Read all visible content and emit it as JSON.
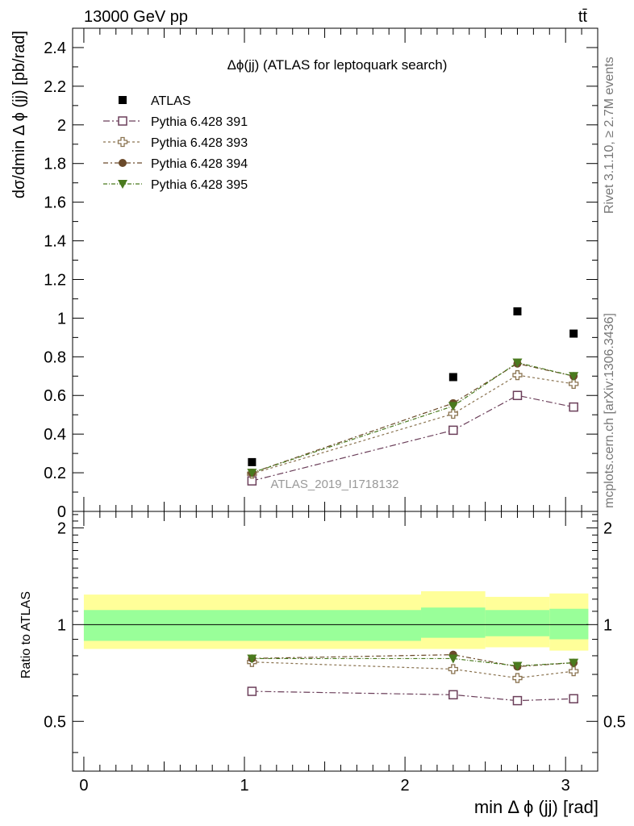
{
  "header": {
    "energy_label": "13000 GeV pp",
    "process_label": "tt̄"
  },
  "side_labels": {
    "rivet": "Rivet 3.1.10, ≥ 2.7M events",
    "mcplots": "mcplots.cern.ch [arXiv:1306.3436]"
  },
  "chart_data": [
    {
      "type": "scatter",
      "title": "Δϕ(jj) (ATLAS for leptoquark search)",
      "ylabel": "dσ/dmin Δ ϕ (jj) [pb/rad]",
      "xlabel": "min Δ ϕ (jj) [rad]",
      "watermark": "ATLAS_2019_I1718132",
      "xlim": [
        -0.07,
        3.2
      ],
      "ylim": [
        0,
        2.5
      ],
      "x_ticks": [
        "0",
        "1",
        "2",
        "3"
      ],
      "y_ticks": [
        "0",
        "0.2",
        "0.4",
        "0.6",
        "0.8",
        "1",
        "1.2",
        "1.4",
        "1.6",
        "1.8",
        "2",
        "2.2",
        "2.4"
      ],
      "x": [
        1.047,
        2.3,
        2.7,
        3.05
      ],
      "series": [
        {
          "name": "ATLAS",
          "marker": "square-filled",
          "color": "#000000",
          "values": [
            0.255,
            0.695,
            1.035,
            0.92
          ]
        },
        {
          "name": "Pythia 6.428 391",
          "marker": "square-open",
          "color": "#6b3f5a",
          "values": [
            0.158,
            0.42,
            0.6,
            0.54
          ]
        },
        {
          "name": "Pythia 6.428 393",
          "marker": "cross-open",
          "color": "#8a7350",
          "values": [
            0.195,
            0.505,
            0.705,
            0.66
          ]
        },
        {
          "name": "Pythia 6.428 394",
          "marker": "circle-filled",
          "color": "#6b4a2a",
          "values": [
            0.2,
            0.56,
            0.765,
            0.7
          ]
        },
        {
          "name": "Pythia 6.428 395",
          "marker": "triangle-down-filled",
          "color": "#4a7a1e",
          "values": [
            0.2,
            0.545,
            0.77,
            0.7
          ]
        }
      ]
    },
    {
      "type": "scatter",
      "ylabel": "Ratio to ATLAS",
      "xlabel": "min Δ ϕ (jj) [rad]",
      "xlim": [
        -0.07,
        3.2
      ],
      "ylim": [
        0.35,
        2.25
      ],
      "x_ticks": [
        "0",
        "1",
        "2",
        "3"
      ],
      "y_ticks": [
        "0.5",
        "1",
        "2"
      ],
      "bands": {
        "bins": [
          [
            0.0,
            2.1
          ],
          [
            2.1,
            2.5
          ],
          [
            2.5,
            2.9
          ],
          [
            2.9,
            3.1416
          ]
        ],
        "inner": [
          [
            0.89,
            1.11
          ],
          [
            0.91,
            1.13
          ],
          [
            0.92,
            1.11
          ],
          [
            0.9,
            1.12
          ]
        ],
        "outer": [
          [
            0.84,
            1.24
          ],
          [
            0.84,
            1.27
          ],
          [
            0.85,
            1.22
          ],
          [
            0.83,
            1.25
          ]
        ],
        "inner_color": "#99ff99",
        "outer_color": "#ffff99"
      },
      "x": [
        1.047,
        2.3,
        2.7,
        3.05
      ],
      "series": [
        {
          "name": "Pythia 6.428 391",
          "marker": "square-open",
          "color": "#6b3f5a",
          "values": [
            0.62,
            0.605,
            0.58,
            0.588
          ]
        },
        {
          "name": "Pythia 6.428 393",
          "marker": "cross-open",
          "color": "#8a7350",
          "values": [
            0.765,
            0.727,
            0.682,
            0.716
          ]
        },
        {
          "name": "Pythia 6.428 394",
          "marker": "circle-filled",
          "color": "#6b4a2a",
          "values": [
            0.785,
            0.806,
            0.74,
            0.761
          ]
        },
        {
          "name": "Pythia 6.428 395",
          "marker": "triangle-down-filled",
          "color": "#4a7a1e",
          "values": [
            0.784,
            0.784,
            0.744,
            0.761
          ]
        }
      ]
    }
  ]
}
